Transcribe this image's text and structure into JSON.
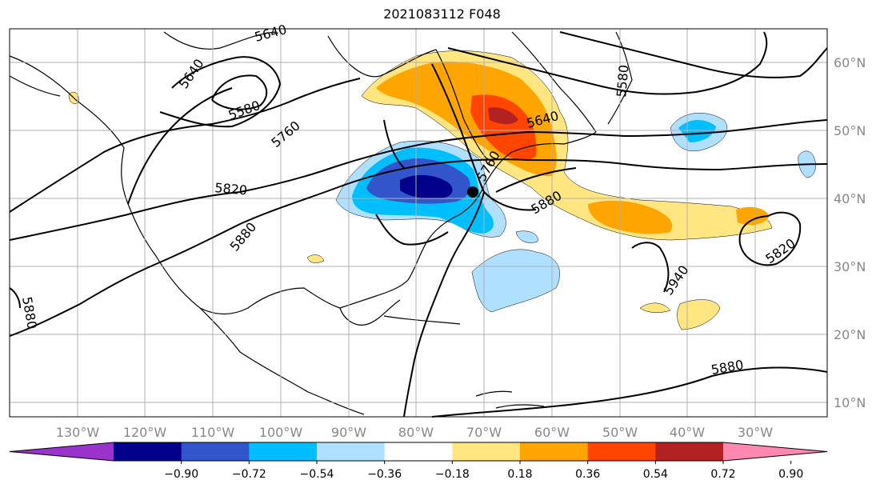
{
  "title": "2021083112 F048",
  "map": {
    "projection": "PlateCarree",
    "lon_range": [
      -140,
      -20
    ],
    "lat_range": [
      8,
      66
    ],
    "grid": true,
    "lon_ticks": [
      "130°W",
      "120°W",
      "110°W",
      "100°W",
      "90°W",
      "80°W",
      "70°W",
      "60°W",
      "50°W",
      "40°W",
      "30°W"
    ],
    "lat_ticks": [
      "60°N",
      "50°N",
      "40°N",
      "30°N",
      "20°N",
      "10°N"
    ],
    "lat_tick_side": "right",
    "lon_tick_side": "bottom"
  },
  "contours": {
    "color": "#000000",
    "labels": [
      {
        "text": "5640"
      },
      {
        "text": "5640"
      },
      {
        "text": "5580"
      },
      {
        "text": "5760"
      },
      {
        "text": "5820"
      },
      {
        "text": "5880"
      },
      {
        "text": "5880"
      },
      {
        "text": "5580"
      },
      {
        "text": "5640"
      },
      {
        "text": "5760"
      },
      {
        "text": "5880"
      },
      {
        "text": "5940"
      },
      {
        "text": "5820"
      },
      {
        "text": "5880"
      }
    ]
  },
  "colorbar": {
    "placement": "bottom",
    "extend": "both",
    "tick_labels": [
      "−0.90",
      "−0.72",
      "−0.54",
      "−0.36",
      "−0.18",
      "0.18",
      "0.36",
      "0.54",
      "0.72",
      "0.90"
    ],
    "colors": [
      "#9933cc",
      "#00008b",
      "#3355cc",
      "#00bfff",
      "#b0e0ff",
      "#ffffff",
      "#ffe680",
      "#ffa500",
      "#ff4500",
      "#b22222",
      "#ff88b0"
    ]
  }
}
